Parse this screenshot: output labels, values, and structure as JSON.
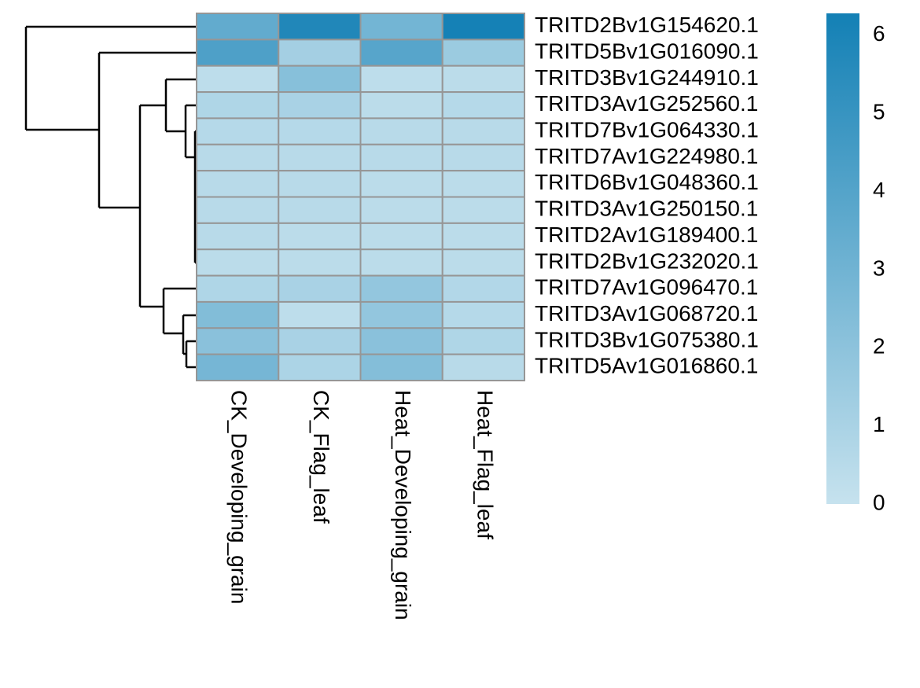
{
  "chart_data": {
    "type": "heatmap",
    "rows": [
      "TRITD2Bv1G154620.1",
      "TRITD5Bv1G016090.1",
      "TRITD3Bv1G244910.1",
      "TRITD3Av1G252560.1",
      "TRITD7Bv1G064330.1",
      "TRITD7Av1G224980.1",
      "TRITD6Bv1G048360.1",
      "TRITD3Av1G250150.1",
      "TRITD2Av1G189400.1",
      "TRITD2Bv1G232020.1",
      "TRITD7Av1G096470.1",
      "TRITD3Av1G068720.1",
      "TRITD3Bv1G075380.1",
      "TRITD5Av1G016860.1"
    ],
    "columns": [
      "CK_Developing_grain",
      "CK_Flag_leaf",
      "Heat_Developing_grain",
      "Heat_Flag_leaf"
    ],
    "values": [
      [
        3.5,
        5.8,
        2.9,
        6.2
      ],
      [
        4.2,
        1.2,
        3.9,
        1.5
      ],
      [
        0.3,
        2.2,
        0.3,
        0.4
      ],
      [
        0.8,
        1.0,
        0.4,
        0.6
      ],
      [
        0.6,
        0.6,
        0.5,
        0.5
      ],
      [
        0.5,
        0.5,
        0.5,
        0.5
      ],
      [
        0.5,
        0.5,
        0.4,
        0.4
      ],
      [
        0.5,
        0.5,
        0.4,
        0.4
      ],
      [
        0.5,
        0.4,
        0.4,
        0.4
      ],
      [
        0.4,
        0.4,
        0.4,
        0.4
      ],
      [
        0.8,
        1.0,
        1.8,
        0.7
      ],
      [
        2.4,
        0.3,
        1.8,
        0.6
      ],
      [
        2.1,
        1.0,
        2.1,
        0.8
      ],
      [
        2.8,
        0.9,
        2.3,
        0.5
      ]
    ],
    "zlim": [
      0,
      6.28
    ],
    "zticks": [
      0,
      1,
      2,
      3,
      4,
      5,
      6
    ],
    "colors": [
      "#c6e2ee",
      "#1380b5"
    ]
  }
}
